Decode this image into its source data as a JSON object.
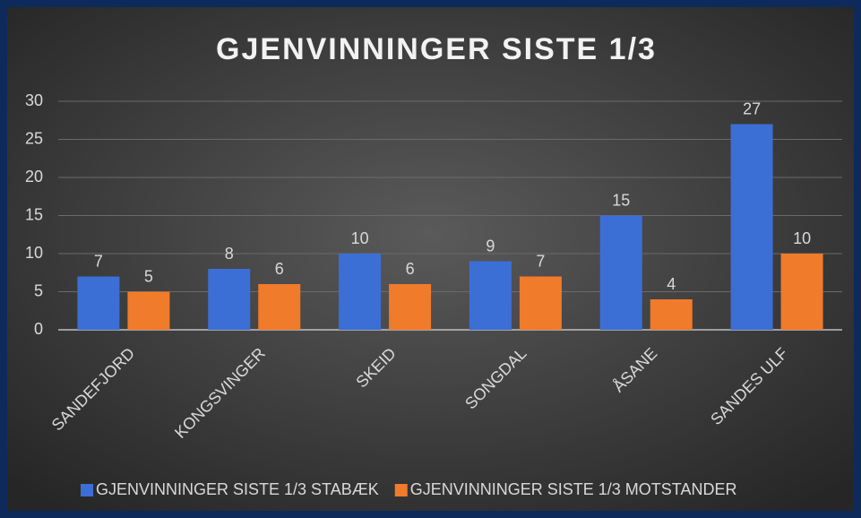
{
  "chart_data": {
    "type": "bar",
    "title": "GJENVINNINGER SISTE 1/3",
    "categories": [
      "SANDEFJORD",
      "KONGSVINGER",
      "SKEID",
      "SONGDAL",
      "ÅSANE",
      "SANDES ULF"
    ],
    "series": [
      {
        "name": "GJENVINNINGER SISTE 1/3 STABÆK",
        "color": "#3b6fd6",
        "values": [
          7,
          8,
          10,
          9,
          15,
          27
        ]
      },
      {
        "name": "GJENVINNINGER SISTE 1/3 MOTSTANDER",
        "color": "#f07b2a",
        "values": [
          5,
          6,
          6,
          7,
          4,
          10
        ]
      }
    ],
    "ylim": [
      0,
      30
    ],
    "yticks": [
      0,
      5,
      10,
      15,
      20,
      25,
      30
    ],
    "grid": true,
    "legend": "bottom"
  }
}
